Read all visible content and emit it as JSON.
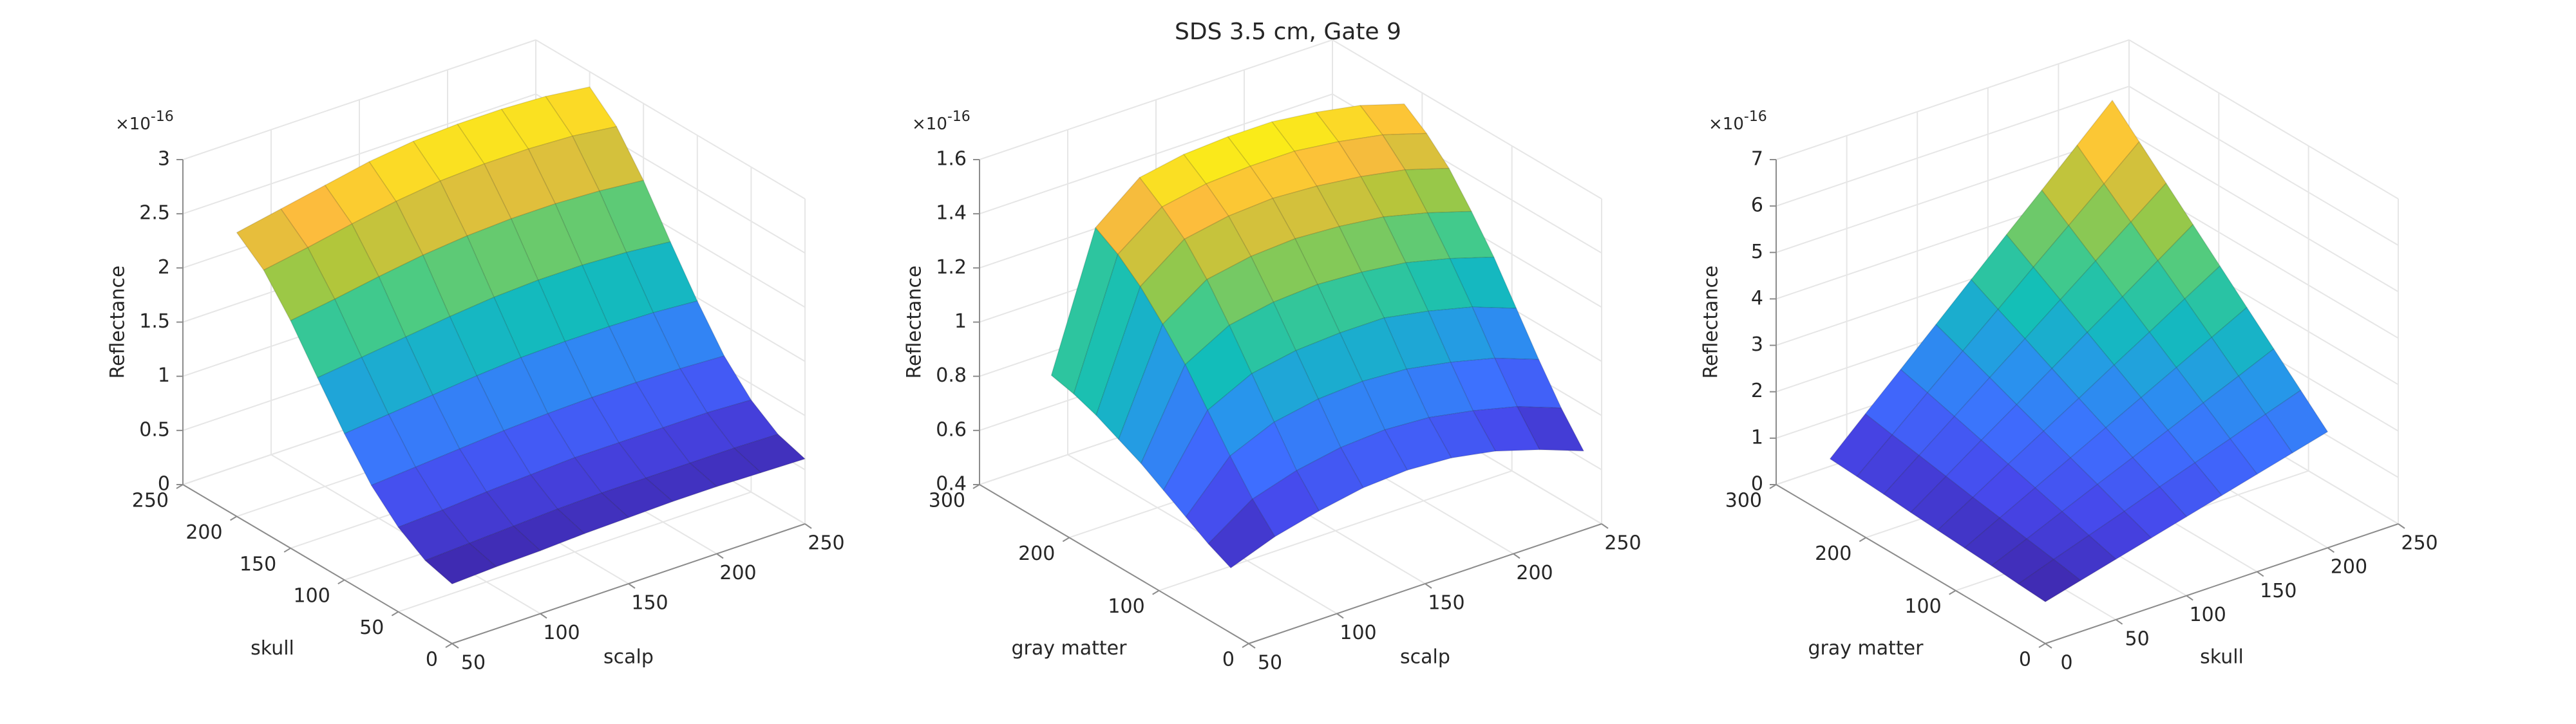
{
  "figure_title": "SDS 3.5 cm, Gate 9",
  "chart_data": [
    {
      "type": "surface",
      "colormap": "parula",
      "grid": true,
      "xlabel": "scalp",
      "ylabel": "skull",
      "zlabel": "Reflectance",
      "z_multiplier": "×10",
      "z_exponent": "-16",
      "xlim": [
        50,
        250
      ],
      "ylim": [
        0,
        250
      ],
      "zlim": [
        0,
        3
      ],
      "xticks": [
        50,
        100,
        150,
        200,
        250
      ],
      "yticks": [
        0,
        50,
        100,
        150,
        200,
        250
      ],
      "zticks": [
        0,
        0.5,
        1,
        1.5,
        2,
        2.5,
        3
      ],
      "x": [
        50,
        75,
        100,
        125,
        150,
        175,
        200,
        225,
        250
      ],
      "y": [
        0,
        25,
        50,
        75,
        100,
        125,
        150,
        175,
        200
      ],
      "z": [
        [
          0.55,
          0.57,
          0.58,
          0.6,
          0.61,
          0.62,
          0.62,
          0.61,
          0.6
        ],
        [
          0.62,
          0.64,
          0.66,
          0.68,
          0.69,
          0.69,
          0.69,
          0.69,
          0.68
        ],
        [
          0.78,
          0.8,
          0.83,
          0.85,
          0.87,
          0.87,
          0.87,
          0.87,
          0.85
        ],
        [
          1.02,
          1.05,
          1.08,
          1.11,
          1.13,
          1.14,
          1.14,
          1.13,
          1.11
        ],
        [
          1.35,
          1.39,
          1.43,
          1.47,
          1.5,
          1.51,
          1.51,
          1.5,
          1.47
        ],
        [
          1.72,
          1.77,
          1.82,
          1.87,
          1.91,
          1.93,
          1.93,
          1.91,
          1.87
        ],
        [
          2.1,
          2.16,
          2.23,
          2.29,
          2.33,
          2.35,
          2.35,
          2.33,
          2.29
        ],
        [
          2.42,
          2.49,
          2.57,
          2.64,
          2.69,
          2.71,
          2.71,
          2.69,
          2.64
        ],
        [
          2.62,
          2.7,
          2.78,
          2.86,
          2.91,
          2.93,
          2.93,
          2.91,
          2.86
        ]
      ]
    },
    {
      "type": "surface",
      "colormap": "parula",
      "grid": true,
      "xlabel": "scalp",
      "ylabel": "gray matter",
      "zlabel": "Reflectance",
      "z_multiplier": "×10",
      "z_exponent": "-16",
      "xlim": [
        50,
        250
      ],
      "ylim": [
        0,
        300
      ],
      "zlim": [
        0.4,
        1.6
      ],
      "xticks": [
        50,
        100,
        150,
        200,
        250
      ],
      "yticks": [
        0,
        100,
        200,
        300
      ],
      "zticks": [
        0.4,
        0.6,
        0.8,
        1,
        1.2,
        1.4,
        1.6
      ],
      "x": [
        50,
        75,
        100,
        125,
        150,
        175,
        200,
        225,
        250
      ],
      "y": [
        20,
        45,
        70,
        95,
        120,
        145,
        170,
        195,
        220
      ],
      "z": [
        [
          0.64,
          0.7,
          0.74,
          0.77,
          0.78,
          0.77,
          0.74,
          0.69,
          0.63
        ],
        [
          0.68,
          0.79,
          0.84,
          0.87,
          0.88,
          0.87,
          0.84,
          0.8,
          0.74
        ],
        [
          0.73,
          0.9,
          0.97,
          1.0,
          1.01,
          1.0,
          0.97,
          0.93,
          0.87
        ],
        [
          0.78,
          1.02,
          1.1,
          1.13,
          1.14,
          1.14,
          1.11,
          1.07,
          1.01
        ],
        [
          0.83,
          1.14,
          1.23,
          1.26,
          1.27,
          1.26,
          1.24,
          1.2,
          1.15
        ],
        [
          0.87,
          1.24,
          1.35,
          1.38,
          1.39,
          1.38,
          1.36,
          1.32,
          1.27
        ],
        [
          0.91,
          1.33,
          1.45,
          1.48,
          1.49,
          1.48,
          1.46,
          1.43,
          1.38
        ],
        [
          0.94,
          1.4,
          1.52,
          1.55,
          1.56,
          1.56,
          1.54,
          1.51,
          1.46
        ],
        [
          0.96,
          1.45,
          1.58,
          1.61,
          1.62,
          1.62,
          1.6,
          1.57,
          1.52
        ]
      ]
    },
    {
      "type": "surface",
      "colormap": "parula",
      "grid": true,
      "xlabel": "skull",
      "ylabel": "gray matter",
      "zlabel": "Reflectance",
      "z_multiplier": "×10",
      "z_exponent": "-16",
      "xlim": [
        0,
        250
      ],
      "ylim": [
        0,
        300
      ],
      "zlim": [
        0,
        7
      ],
      "xticks": [
        0,
        50,
        100,
        150,
        200,
        250
      ],
      "yticks": [
        0,
        100,
        200,
        300
      ],
      "zticks": [
        0,
        1,
        2,
        3,
        4,
        5,
        6,
        7
      ],
      "x": [
        0,
        25,
        50,
        75,
        100,
        125,
        150,
        175,
        200
      ],
      "y": [
        0,
        30,
        60,
        90,
        120,
        150,
        180,
        210,
        240
      ],
      "z": [
        [
          0.9,
          1.1,
          1.3,
          1.5,
          1.7,
          1.9,
          2.1,
          2.3,
          2.5
        ],
        [
          0.94,
          1.21,
          1.47,
          1.73,
          2.0,
          2.26,
          2.52,
          2.79,
          3.05
        ],
        [
          0.99,
          1.31,
          1.64,
          1.97,
          2.29,
          2.62,
          2.95,
          3.27,
          3.6
        ],
        [
          1.03,
          1.42,
          1.81,
          2.2,
          2.59,
          2.98,
          3.37,
          3.76,
          4.15
        ],
        [
          1.07,
          1.52,
          1.98,
          2.43,
          2.88,
          3.34,
          3.79,
          4.25,
          4.7
        ],
        [
          1.11,
          1.63,
          2.15,
          2.66,
          3.18,
          3.7,
          4.21,
          4.73,
          5.25
        ],
        [
          1.16,
          1.74,
          2.32,
          2.9,
          3.48,
          4.06,
          4.64,
          5.22,
          5.8
        ],
        [
          1.2,
          1.84,
          2.49,
          3.13,
          3.77,
          4.42,
          5.06,
          5.7,
          6.35
        ],
        [
          1.24,
          1.95,
          2.65,
          3.36,
          4.07,
          4.78,
          5.48,
          6.19,
          6.9
        ]
      ]
    }
  ]
}
